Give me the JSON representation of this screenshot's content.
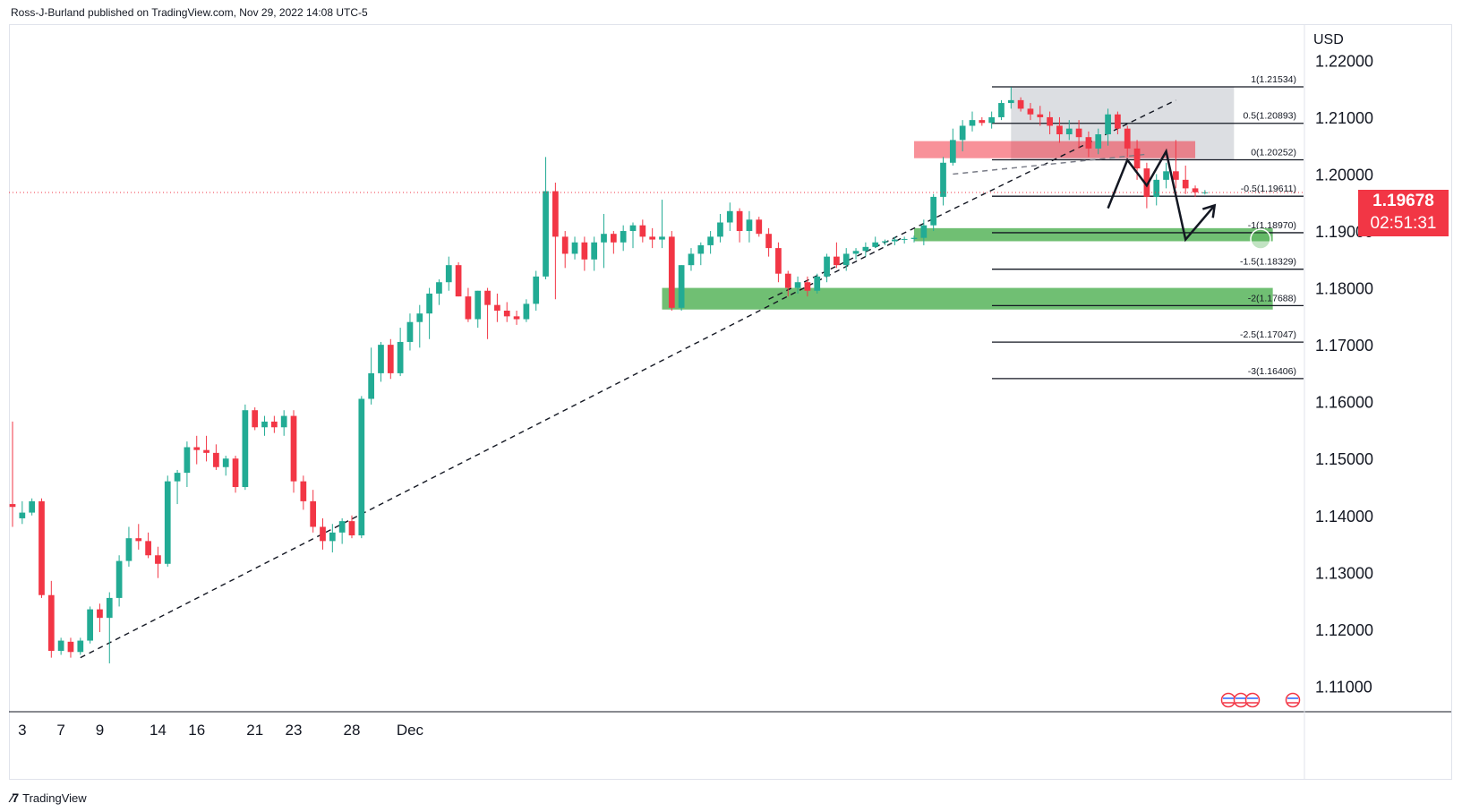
{
  "header": {
    "text": "Ross-J-Burland published on TradingView.com, Nov 29, 2022 14:08 UTC-5"
  },
  "footer": {
    "brand": "TradingView",
    "logo_icon": "tradingview-logo-icon"
  },
  "colors": {
    "up": "#22ab94",
    "down": "#f23645",
    "trend": "#131722",
    "support_zone": "#4caf50",
    "resistance_zone": "#f23645",
    "range_box": "#b2b5be",
    "grid": "#f0f3fa"
  },
  "last_price": {
    "value": "1.19678",
    "countdown": "02:51:31"
  },
  "chart_data": {
    "type": "candlestick",
    "symbol_currency": "USD",
    "y_axis": {
      "ticks": [
        "1.22000",
        "1.21000",
        "1.20000",
        "1.19000",
        "1.18000",
        "1.17000",
        "1.16000",
        "1.15000",
        "1.14000",
        "1.13000",
        "1.12000",
        "1.11000"
      ],
      "ylim": [
        1.1055,
        1.2262
      ]
    },
    "x_axis": {
      "ticks": [
        "3",
        "7",
        "9",
        "14",
        "16",
        "21",
        "23",
        "28",
        "Dec"
      ],
      "tick_index": [
        1,
        5,
        9,
        15,
        19,
        25,
        29,
        35,
        41
      ]
    },
    "candles": [
      [
        1.142,
        1.1565,
        1.138,
        1.1415
      ],
      [
        1.1395,
        1.1425,
        1.1385,
        1.1405
      ],
      [
        1.1405,
        1.143,
        1.14,
        1.1425
      ],
      [
        1.1425,
        1.143,
        1.1255,
        1.126
      ],
      [
        1.126,
        1.1285,
        1.115,
        1.1162
      ],
      [
        1.1162,
        1.1185,
        1.1155,
        1.118
      ],
      [
        1.1178,
        1.1185,
        1.115,
        1.116
      ],
      [
        1.116,
        1.1185,
        1.1155,
        1.118
      ],
      [
        1.118,
        1.124,
        1.1175,
        1.1235
      ],
      [
        1.1235,
        1.1245,
        1.1195,
        1.122
      ],
      [
        1.122,
        1.1265,
        1.114,
        1.1255
      ],
      [
        1.1255,
        1.133,
        1.124,
        1.132
      ],
      [
        1.132,
        1.138,
        1.131,
        1.136
      ],
      [
        1.136,
        1.1385,
        1.134,
        1.1355
      ],
      [
        1.1355,
        1.137,
        1.1325,
        1.133
      ],
      [
        1.133,
        1.1345,
        1.129,
        1.1315
      ],
      [
        1.1315,
        1.147,
        1.131,
        1.146
      ],
      [
        1.146,
        1.148,
        1.142,
        1.1475
      ],
      [
        1.1475,
        1.153,
        1.145,
        1.152
      ],
      [
        1.152,
        1.154,
        1.149,
        1.1515
      ],
      [
        1.1515,
        1.154,
        1.1495,
        1.151
      ],
      [
        1.151,
        1.1525,
        1.148,
        1.1485
      ],
      [
        1.1485,
        1.1505,
        1.147,
        1.15
      ],
      [
        1.15,
        1.1505,
        1.144,
        1.145
      ],
      [
        1.145,
        1.1595,
        1.1445,
        1.1585
      ],
      [
        1.1585,
        1.159,
        1.155,
        1.1555
      ],
      [
        1.1555,
        1.1575,
        1.154,
        1.1565
      ],
      [
        1.1565,
        1.1575,
        1.1545,
        1.1555
      ],
      [
        1.1555,
        1.1585,
        1.154,
        1.1575
      ],
      [
        1.1575,
        1.1585,
        1.144,
        1.146
      ],
      [
        1.146,
        1.147,
        1.141,
        1.1425
      ],
      [
        1.1425,
        1.1445,
        1.137,
        1.138
      ],
      [
        1.138,
        1.1395,
        1.134,
        1.1355
      ],
      [
        1.1355,
        1.1385,
        1.1335,
        1.137
      ],
      [
        1.137,
        1.1395,
        1.135,
        1.139
      ],
      [
        1.139,
        1.14,
        1.136,
        1.1365
      ],
      [
        1.1365,
        1.161,
        1.136,
        1.1605
      ],
      [
        1.1605,
        1.1695,
        1.1595,
        1.165
      ],
      [
        1.165,
        1.1705,
        1.1635,
        1.17
      ],
      [
        1.17,
        1.171,
        1.164,
        1.165
      ],
      [
        1.165,
        1.173,
        1.1645,
        1.1705
      ],
      [
        1.1705,
        1.1755,
        1.169,
        1.174
      ],
      [
        1.174,
        1.177,
        1.1695,
        1.1755
      ],
      [
        1.1755,
        1.18,
        1.171,
        1.179
      ],
      [
        1.179,
        1.1815,
        1.177,
        1.181
      ],
      [
        1.181,
        1.1855,
        1.1795,
        1.184
      ],
      [
        1.184,
        1.1845,
        1.1785,
        1.1785
      ],
      [
        1.1785,
        1.18,
        1.174,
        1.1745
      ],
      [
        1.1745,
        1.1795,
        1.173,
        1.1795
      ],
      [
        1.1795,
        1.18,
        1.171,
        1.177
      ],
      [
        1.177,
        1.179,
        1.174,
        1.176
      ],
      [
        1.176,
        1.1775,
        1.174,
        1.175
      ],
      [
        1.175,
        1.176,
        1.1735,
        1.1745
      ],
      [
        1.1745,
        1.178,
        1.174,
        1.1772
      ],
      [
        1.1772,
        1.183,
        1.176,
        1.182
      ],
      [
        1.182,
        1.203,
        1.1815,
        1.197
      ],
      [
        1.197,
        1.1985,
        1.178,
        1.189
      ],
      [
        1.189,
        1.19,
        1.1835,
        1.186
      ],
      [
        1.186,
        1.189,
        1.185,
        1.188
      ],
      [
        1.188,
        1.189,
        1.183,
        1.185
      ],
      [
        1.185,
        1.189,
        1.183,
        1.188
      ],
      [
        1.188,
        1.193,
        1.1835,
        1.1895
      ],
      [
        1.1895,
        1.19,
        1.186,
        1.188
      ],
      [
        1.188,
        1.191,
        1.1865,
        1.19
      ],
      [
        1.19,
        1.1915,
        1.187,
        1.191
      ],
      [
        1.191,
        1.192,
        1.188,
        1.189
      ],
      [
        1.189,
        1.1905,
        1.187,
        1.1885
      ],
      [
        1.1885,
        1.1955,
        1.187,
        1.189
      ],
      [
        1.189,
        1.19,
        1.176,
        1.1765
      ],
      [
        1.1765,
        1.184,
        1.176,
        1.184
      ],
      [
        1.184,
        1.187,
        1.183,
        1.186
      ],
      [
        1.186,
        1.188,
        1.184,
        1.1875
      ],
      [
        1.1875,
        1.19,
        1.186,
        1.189
      ],
      [
        1.189,
        1.193,
        1.188,
        1.1915
      ],
      [
        1.1915,
        1.195,
        1.19,
        1.1935
      ],
      [
        1.1935,
        1.194,
        1.188,
        1.19
      ],
      [
        1.19,
        1.1935,
        1.188,
        1.192
      ],
      [
        1.192,
        1.1925,
        1.189,
        1.1895
      ],
      [
        1.1895,
        1.1905,
        1.1855,
        1.187
      ],
      [
        1.187,
        1.188,
        1.181,
        1.1825
      ],
      [
        1.1825,
        1.183,
        1.1785,
        1.18
      ],
      [
        1.18,
        1.182,
        1.179,
        1.181
      ],
      [
        1.181,
        1.182,
        1.1785,
        1.1795
      ],
      [
        1.1795,
        1.1825,
        1.179,
        1.182
      ],
      [
        1.182,
        1.186,
        1.181,
        1.1855
      ],
      [
        1.1855,
        1.188,
        1.1835,
        1.184
      ],
      [
        1.184,
        1.187,
        1.183,
        1.186
      ],
      [
        1.186,
        1.187,
        1.185,
        1.1865
      ],
      [
        1.1865,
        1.188,
        1.1855,
        1.1872
      ],
      [
        1.1872,
        1.189,
        1.187,
        1.188
      ],
      [
        1.188,
        1.1885,
        1.1875,
        1.1882
      ],
      [
        1.1882,
        1.189,
        1.1875,
        1.1885
      ],
      [
        1.1885,
        1.189,
        1.1878,
        1.1886
      ],
      [
        1.1886,
        1.1892,
        1.188,
        1.1888
      ],
      [
        1.1888,
        1.192,
        1.1875,
        1.191
      ],
      [
        1.191,
        1.1965,
        1.19,
        1.196
      ],
      [
        1.196,
        1.203,
        1.1945,
        1.202
      ],
      [
        1.202,
        1.208,
        1.2015,
        1.206
      ],
      [
        1.206,
        1.2095,
        1.204,
        1.2085
      ],
      [
        1.2085,
        1.211,
        1.2075,
        1.2095
      ],
      [
        1.2095,
        1.21,
        1.2085,
        1.209
      ],
      [
        1.209,
        1.211,
        1.208,
        1.21
      ],
      [
        1.21,
        1.213,
        1.2095,
        1.2125
      ],
      [
        1.2125,
        1.2153,
        1.2115,
        1.213
      ],
      [
        1.213,
        1.2135,
        1.211,
        1.2115
      ],
      [
        1.2115,
        1.2125,
        1.2095,
        1.2105
      ],
      [
        1.2105,
        1.212,
        1.2085,
        1.21
      ],
      [
        1.21,
        1.211,
        1.207,
        1.2085
      ],
      [
        1.2085,
        1.21,
        1.2055,
        1.207
      ],
      [
        1.207,
        1.2095,
        1.206,
        1.208
      ],
      [
        1.208,
        1.2095,
        1.2045,
        1.2065
      ],
      [
        1.2065,
        1.2075,
        1.203,
        1.2045
      ],
      [
        1.2045,
        1.208,
        1.2035,
        1.207
      ],
      [
        1.207,
        1.2115,
        1.205,
        1.2105
      ],
      [
        1.2105,
        1.211,
        1.207,
        1.208
      ],
      [
        1.208,
        1.2085,
        1.203,
        1.2045
      ],
      [
        1.2045,
        1.206,
        1.199,
        1.201
      ],
      [
        1.201,
        1.202,
        1.194,
        1.196
      ],
      [
        1.196,
        1.2,
        1.1945,
        1.199
      ],
      [
        1.199,
        1.202,
        1.1975,
        1.2005
      ],
      [
        1.2005,
        1.206,
        1.1975,
        1.199
      ],
      [
        1.199,
        1.2015,
        1.1965,
        1.1975
      ],
      [
        1.1975,
        1.198,
        1.196,
        1.1968
      ],
      [
        1.1968,
        1.1972,
        1.1964,
        1.1968
      ]
    ],
    "fib_levels": [
      {
        "label": "1(1.21534)",
        "value": 1.21534
      },
      {
        "label": "0.5(1.20893)",
        "value": 1.20893
      },
      {
        "label": "0(1.20252)",
        "value": 1.20252
      },
      {
        "label": "-0.5(1.19611)",
        "value": 1.19611
      },
      {
        "label": "-1(1.18970)",
        "value": 1.1897
      },
      {
        "label": "-1.5(1.18329)",
        "value": 1.18329
      },
      {
        "label": "-2(1.17688)",
        "value": 1.17688
      },
      {
        "label": "-2.5(1.17047)",
        "value": 1.17047
      },
      {
        "label": "-3(1.16406)",
        "value": 1.16406
      }
    ],
    "zones": [
      {
        "kind": "range",
        "from_index": 103,
        "to_index": 126,
        "top": 1.2153,
        "bottom": 1.2025
      },
      {
        "kind": "resistance",
        "from_index": 93,
        "to_index": 122,
        "top": 1.2058,
        "bottom": 1.2028
      },
      {
        "kind": "support",
        "from_index": 93,
        "to_index": 130,
        "top": 1.1905,
        "bottom": 1.1882
      },
      {
        "kind": "support",
        "from_index": 67,
        "to_index": 130,
        "top": 1.18,
        "bottom": 1.1762
      }
    ],
    "trendlines": [
      {
        "x1": 7,
        "y1": 1.115,
        "x2": 92,
        "y2": 1.189,
        "dashed": true
      },
      {
        "x1": 78,
        "y1": 1.178,
        "x2": 120,
        "y2": 1.213,
        "dashed": true
      },
      {
        "x1": 97,
        "y1": 1.2,
        "x2": 117,
        "y2": 1.2035,
        "dashed": true
      }
    ],
    "projection_path": [
      [
        113,
        1.194
      ],
      [
        115,
        1.2025
      ],
      [
        117,
        1.198
      ],
      [
        119,
        1.204
      ],
      [
        121,
        1.1885
      ],
      [
        124,
        1.1945
      ]
    ]
  }
}
